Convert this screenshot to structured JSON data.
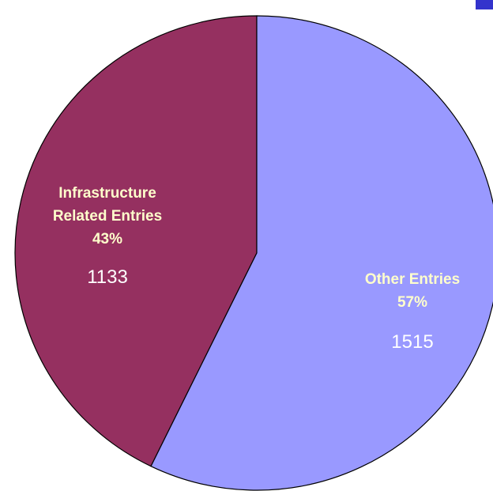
{
  "chart_data": {
    "type": "pie",
    "title": "",
    "slices": [
      {
        "label_lines": [
          "Infrastructure",
          "Related Entries"
        ],
        "percent_label": "43%",
        "value": 1133,
        "value_label": "1133",
        "color": "#953060"
      },
      {
        "label_lines": [
          "Other Entries"
        ],
        "percent_label": "57%",
        "value": 1515,
        "value_label": "1515",
        "color": "#9999FF"
      }
    ],
    "label_text_color": "#FFFFCC",
    "value_text_color": "#FFFFFF",
    "slice_border_color": "#000000",
    "corner_mark_color": "#3333CC"
  }
}
